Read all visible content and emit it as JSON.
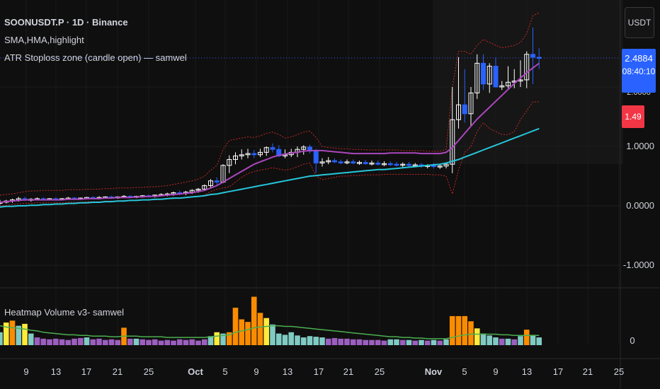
{
  "header": {
    "symbol_line": "SOONUSDT.P · 1D · Binance",
    "indicator_1": "SMA,HMA,highlight",
    "indicator_2": "ATR Stoploss zone (candle open) — samwel"
  },
  "right_axis": {
    "currency": "USDT",
    "price_tags": {
      "last": "2.4884",
      "countdown": "08:40:10",
      "hidden": "2.0000",
      "stop": "1.49"
    },
    "ticks": [
      "1.0000",
      "0.0000",
      "-1.0000"
    ],
    "volume_tick": "0"
  },
  "bottom_pane": {
    "title": "Heatmap Volume v3- samwel"
  },
  "colors": {
    "background": "#0f0f0f",
    "up_candle": "#ffffff",
    "down_candle": "#2962ff",
    "sma": "#26c6da",
    "hma": "#ab47bc",
    "atr_band": "#c62828",
    "volume_ma": "#4caf50",
    "vol_low": "#9c5fbf",
    "vol_normal": "#80cbc4",
    "vol_high": "#ffeb3b",
    "vol_extreme": "#fb8c00",
    "price_tag": "#2962ff",
    "stop_tag": "#f23645"
  },
  "chart_data": {
    "type": "candlestick",
    "x_labels": [
      "9",
      "13",
      "17",
      "21",
      "25",
      "Oct",
      "5",
      "9",
      "13",
      "17",
      "21",
      "25",
      "Nov",
      "5",
      "9",
      "13",
      "17",
      "21",
      "25"
    ],
    "y_ticks": [
      1.0,
      0.0,
      -1.0
    ],
    "ohlc": [
      [
        0.05,
        0.1,
        0.02,
        0.06
      ],
      [
        0.06,
        0.1,
        0.04,
        0.08
      ],
      [
        0.08,
        0.12,
        0.05,
        0.1
      ],
      [
        0.1,
        0.15,
        0.07,
        0.12
      ],
      [
        0.12,
        0.15,
        0.08,
        0.1
      ],
      [
        0.1,
        0.13,
        0.07,
        0.11
      ],
      [
        0.11,
        0.14,
        0.09,
        0.12
      ],
      [
        0.12,
        0.14,
        0.1,
        0.11
      ],
      [
        0.11,
        0.13,
        0.09,
        0.12
      ],
      [
        0.12,
        0.14,
        0.1,
        0.11
      ],
      [
        0.11,
        0.13,
        0.09,
        0.12
      ],
      [
        0.12,
        0.15,
        0.1,
        0.13
      ],
      [
        0.13,
        0.15,
        0.1,
        0.12
      ],
      [
        0.12,
        0.14,
        0.1,
        0.13
      ],
      [
        0.13,
        0.15,
        0.11,
        0.14
      ],
      [
        0.14,
        0.16,
        0.11,
        0.13
      ],
      [
        0.13,
        0.16,
        0.11,
        0.14
      ],
      [
        0.14,
        0.16,
        0.12,
        0.15
      ],
      [
        0.15,
        0.17,
        0.12,
        0.14
      ],
      [
        0.14,
        0.16,
        0.12,
        0.15
      ],
      [
        0.15,
        0.18,
        0.13,
        0.16
      ],
      [
        0.16,
        0.18,
        0.13,
        0.15
      ],
      [
        0.15,
        0.17,
        0.13,
        0.16
      ],
      [
        0.16,
        0.18,
        0.14,
        0.17
      ],
      [
        0.17,
        0.19,
        0.14,
        0.16
      ],
      [
        0.16,
        0.19,
        0.14,
        0.18
      ],
      [
        0.18,
        0.21,
        0.16,
        0.19
      ],
      [
        0.19,
        0.22,
        0.16,
        0.2
      ],
      [
        0.2,
        0.24,
        0.17,
        0.22
      ],
      [
        0.22,
        0.26,
        0.18,
        0.21
      ],
      [
        0.21,
        0.25,
        0.18,
        0.23
      ],
      [
        0.23,
        0.28,
        0.2,
        0.26
      ],
      [
        0.26,
        0.3,
        0.22,
        0.28
      ],
      [
        0.28,
        0.36,
        0.25,
        0.34
      ],
      [
        0.34,
        0.45,
        0.3,
        0.42
      ],
      [
        0.42,
        0.48,
        0.35,
        0.4
      ],
      [
        0.4,
        0.7,
        0.38,
        0.68
      ],
      [
        0.68,
        0.85,
        0.55,
        0.78
      ],
      [
        0.78,
        0.9,
        0.7,
        0.84
      ],
      [
        0.84,
        0.95,
        0.78,
        0.86
      ],
      [
        0.86,
        0.96,
        0.8,
        0.88
      ],
      [
        0.88,
        0.94,
        0.8,
        0.86
      ],
      [
        0.86,
        0.96,
        0.82,
        0.9
      ],
      [
        0.9,
        1.0,
        0.84,
        0.98
      ],
      [
        0.98,
        1.05,
        0.9,
        0.95
      ],
      [
        0.95,
        1.02,
        0.82,
        0.84
      ],
      [
        0.84,
        0.95,
        0.8,
        0.86
      ],
      [
        0.86,
        0.96,
        0.82,
        0.9
      ],
      [
        0.9,
        1.0,
        0.82,
        0.95
      ],
      [
        0.95,
        1.02,
        0.86,
        0.99
      ],
      [
        0.99,
        1.03,
        0.88,
        0.92
      ],
      [
        0.92,
        0.96,
        0.55,
        0.72
      ],
      [
        0.72,
        0.8,
        0.66,
        0.74
      ],
      [
        0.74,
        0.82,
        0.7,
        0.76
      ],
      [
        0.76,
        0.8,
        0.72,
        0.74
      ],
      [
        0.74,
        0.78,
        0.7,
        0.73
      ],
      [
        0.73,
        0.78,
        0.7,
        0.74
      ],
      [
        0.74,
        0.78,
        0.7,
        0.72
      ],
      [
        0.72,
        0.76,
        0.69,
        0.73
      ],
      [
        0.73,
        0.77,
        0.69,
        0.71
      ],
      [
        0.71,
        0.76,
        0.68,
        0.72
      ],
      [
        0.72,
        0.76,
        0.68,
        0.7
      ],
      [
        0.7,
        0.75,
        0.67,
        0.71
      ],
      [
        0.71,
        0.75,
        0.67,
        0.7
      ],
      [
        0.7,
        0.74,
        0.66,
        0.69
      ],
      [
        0.69,
        0.73,
        0.65,
        0.7
      ],
      [
        0.7,
        0.74,
        0.66,
        0.68
      ],
      [
        0.68,
        0.72,
        0.65,
        0.69
      ],
      [
        0.69,
        0.72,
        0.64,
        0.67
      ],
      [
        0.67,
        0.7,
        0.63,
        0.68
      ],
      [
        0.68,
        0.72,
        0.63,
        0.66
      ],
      [
        0.66,
        0.7,
        0.62,
        0.67
      ],
      [
        0.67,
        0.72,
        0.63,
        0.7
      ],
      [
        0.7,
        2.0,
        0.55,
        1.45
      ],
      [
        1.45,
        2.5,
        1.3,
        1.7
      ],
      [
        1.7,
        2.3,
        1.4,
        1.55
      ],
      [
        1.55,
        2.0,
        1.35,
        1.9
      ],
      [
        1.9,
        2.55,
        1.8,
        2.4
      ],
      [
        2.4,
        2.55,
        1.95,
        2.05
      ],
      [
        2.05,
        2.4,
        1.9,
        2.35
      ],
      [
        2.35,
        2.5,
        2.0,
        2.0
      ],
      [
        2.0,
        2.1,
        1.95,
        2.02
      ],
      [
        2.02,
        2.35,
        1.98,
        2.08
      ],
      [
        2.08,
        2.3,
        1.98,
        2.1
      ],
      [
        2.1,
        2.45,
        2.0,
        2.12
      ],
      [
        2.12,
        2.6,
        1.98,
        2.55
      ],
      [
        2.55,
        3.0,
        2.05,
        2.5
      ],
      [
        2.5,
        2.65,
        2.3,
        2.49
      ]
    ],
    "sma": [
      -0.02,
      -0.01,
      -0.01,
      0.0,
      0.0,
      0.01,
      0.01,
      0.02,
      0.02,
      0.03,
      0.03,
      0.04,
      0.04,
      0.05,
      0.05,
      0.06,
      0.06,
      0.07,
      0.07,
      0.08,
      0.08,
      0.09,
      0.09,
      0.1,
      0.1,
      0.11,
      0.11,
      0.12,
      0.13,
      0.13,
      0.14,
      0.15,
      0.16,
      0.17,
      0.19,
      0.2,
      0.22,
      0.24,
      0.26,
      0.28,
      0.3,
      0.32,
      0.34,
      0.36,
      0.38,
      0.4,
      0.42,
      0.44,
      0.46,
      0.48,
      0.5,
      0.51,
      0.52,
      0.53,
      0.54,
      0.55,
      0.56,
      0.57,
      0.58,
      0.59,
      0.6,
      0.61,
      0.61,
      0.62,
      0.63,
      0.64,
      0.65,
      0.66,
      0.67,
      0.68,
      0.69,
      0.7,
      0.72,
      0.75,
      0.78,
      0.82,
      0.86,
      0.9,
      0.94,
      0.98,
      1.02,
      1.06,
      1.1,
      1.14,
      1.18,
      1.22,
      1.26,
      1.3
    ],
    "hma": [
      0.06,
      0.07,
      0.08,
      0.09,
      0.1,
      0.1,
      0.1,
      0.1,
      0.1,
      0.1,
      0.1,
      0.11,
      0.11,
      0.11,
      0.12,
      0.12,
      0.12,
      0.13,
      0.13,
      0.14,
      0.14,
      0.14,
      0.15,
      0.15,
      0.16,
      0.16,
      0.17,
      0.18,
      0.19,
      0.2,
      0.21,
      0.22,
      0.24,
      0.26,
      0.3,
      0.34,
      0.4,
      0.46,
      0.52,
      0.58,
      0.64,
      0.7,
      0.74,
      0.78,
      0.82,
      0.85,
      0.87,
      0.89,
      0.9,
      0.92,
      0.93,
      0.93,
      0.93,
      0.92,
      0.91,
      0.9,
      0.89,
      0.88,
      0.88,
      0.88,
      0.88,
      0.88,
      0.88,
      0.89,
      0.89,
      0.89,
      0.89,
      0.89,
      0.88,
      0.88,
      0.88,
      0.88,
      0.9,
      0.98,
      1.1,
      1.22,
      1.34,
      1.46,
      1.56,
      1.66,
      1.76,
      1.86,
      1.96,
      2.06,
      2.15,
      2.24,
      2.32,
      2.4
    ],
    "atr_upper": [
      0.18,
      0.19,
      0.2,
      0.22,
      0.24,
      0.25,
      0.25,
      0.26,
      0.26,
      0.26,
      0.26,
      0.27,
      0.27,
      0.27,
      0.28,
      0.28,
      0.28,
      0.29,
      0.29,
      0.3,
      0.3,
      0.3,
      0.31,
      0.31,
      0.32,
      0.32,
      0.33,
      0.34,
      0.36,
      0.38,
      0.4,
      0.42,
      0.45,
      0.5,
      0.6,
      0.68,
      0.95,
      1.1,
      1.12,
      1.14,
      1.16,
      1.15,
      1.18,
      1.22,
      1.24,
      1.2,
      1.14,
      1.16,
      1.2,
      1.24,
      1.26,
      1.15,
      1.0,
      0.98,
      0.97,
      0.96,
      0.96,
      0.95,
      0.95,
      0.94,
      0.94,
      0.94,
      0.94,
      0.94,
      0.94,
      0.93,
      0.93,
      0.93,
      0.93,
      0.92,
      0.92,
      0.92,
      0.95,
      2.0,
      2.6,
      2.6,
      2.55,
      2.7,
      2.8,
      2.75,
      2.7,
      2.66,
      2.68,
      2.7,
      2.75,
      2.9,
      3.2,
      3.25
    ],
    "atr_lower": [
      0.0,
      0.01,
      0.02,
      0.03,
      0.04,
      0.04,
      0.05,
      0.05,
      0.05,
      0.05,
      0.05,
      0.06,
      0.06,
      0.06,
      0.07,
      0.07,
      0.07,
      0.08,
      0.08,
      0.08,
      0.09,
      0.09,
      0.09,
      0.1,
      0.1,
      0.1,
      0.11,
      0.12,
      0.12,
      0.13,
      0.14,
      0.15,
      0.16,
      0.18,
      0.24,
      0.28,
      0.3,
      0.32,
      0.4,
      0.48,
      0.54,
      0.58,
      0.6,
      0.62,
      0.64,
      0.62,
      0.6,
      0.62,
      0.66,
      0.7,
      0.72,
      0.5,
      0.44,
      0.46,
      0.48,
      0.5,
      0.5,
      0.51,
      0.51,
      0.52,
      0.52,
      0.52,
      0.53,
      0.53,
      0.53,
      0.53,
      0.53,
      0.53,
      0.53,
      0.53,
      0.52,
      0.52,
      0.5,
      0.2,
      0.6,
      0.9,
      1.0,
      1.25,
      1.4,
      1.3,
      1.25,
      1.2,
      1.2,
      1.25,
      1.45,
      1.6,
      1.75,
      1.75
    ],
    "volume": [
      0.2,
      0.35,
      0.38,
      0.3,
      0.33,
      0.18,
      0.12,
      0.1,
      0.09,
      0.1,
      0.09,
      0.08,
      0.1,
      0.11,
      0.12,
      0.09,
      0.1,
      0.08,
      0.09,
      0.08,
      0.27,
      0.1,
      0.1,
      0.09,
      0.08,
      0.09,
      0.07,
      0.08,
      0.07,
      0.09,
      0.08,
      0.09,
      0.07,
      0.09,
      0.14,
      0.2,
      0.18,
      0.2,
      0.58,
      0.4,
      0.36,
      0.75,
      0.5,
      0.42,
      0.32,
      0.18,
      0.16,
      0.2,
      0.15,
      0.12,
      0.14,
      0.13,
      0.12,
      0.1,
      0.11,
      0.1,
      0.1,
      0.09,
      0.09,
      0.08,
      0.08,
      0.08,
      0.07,
      0.09,
      0.09,
      0.08,
      0.08,
      0.07,
      0.08,
      0.07,
      0.08,
      0.07,
      0.09,
      0.45,
      0.45,
      0.45,
      0.37,
      0.26,
      0.18,
      0.15,
      0.12,
      0.1,
      0.1,
      0.09,
      0.14,
      0.24,
      0.16,
      0.12
    ],
    "volume_ma": [
      0.3,
      0.28,
      0.27,
      0.26,
      0.25,
      0.23,
      0.22,
      0.2,
      0.19,
      0.18,
      0.17,
      0.16,
      0.16,
      0.15,
      0.15,
      0.14,
      0.14,
      0.14,
      0.13,
      0.13,
      0.14,
      0.14,
      0.14,
      0.13,
      0.13,
      0.13,
      0.13,
      0.12,
      0.12,
      0.12,
      0.12,
      0.12,
      0.12,
      0.12,
      0.13,
      0.14,
      0.15,
      0.16,
      0.2,
      0.22,
      0.24,
      0.27,
      0.28,
      0.29,
      0.3,
      0.3,
      0.29,
      0.29,
      0.28,
      0.27,
      0.26,
      0.25,
      0.24,
      0.23,
      0.22,
      0.21,
      0.2,
      0.19,
      0.18,
      0.17,
      0.16,
      0.15,
      0.14,
      0.13,
      0.13,
      0.12,
      0.12,
      0.11,
      0.11,
      0.1,
      0.1,
      0.1,
      0.1,
      0.12,
      0.14,
      0.16,
      0.17,
      0.17,
      0.17,
      0.17,
      0.17,
      0.16,
      0.16,
      0.15,
      0.15,
      0.15,
      0.15,
      0.15
    ],
    "volume_class": [
      1,
      2,
      3,
      1,
      2,
      1,
      0,
      0,
      0,
      0,
      0,
      0,
      0,
      0,
      1,
      0,
      0,
      0,
      0,
      0,
      3,
      0,
      1,
      0,
      0,
      0,
      0,
      0,
      0,
      0,
      0,
      0,
      0,
      0,
      1,
      2,
      1,
      3,
      3,
      3,
      3,
      3,
      3,
      2,
      1,
      1,
      1,
      1,
      1,
      1,
      1,
      1,
      1,
      0,
      0,
      0,
      0,
      0,
      0,
      0,
      0,
      0,
      0,
      1,
      1,
      0,
      1,
      0,
      1,
      0,
      1,
      0,
      1,
      3,
      3,
      3,
      3,
      2,
      1,
      1,
      1,
      0,
      1,
      0,
      1,
      3,
      1,
      1
    ]
  }
}
